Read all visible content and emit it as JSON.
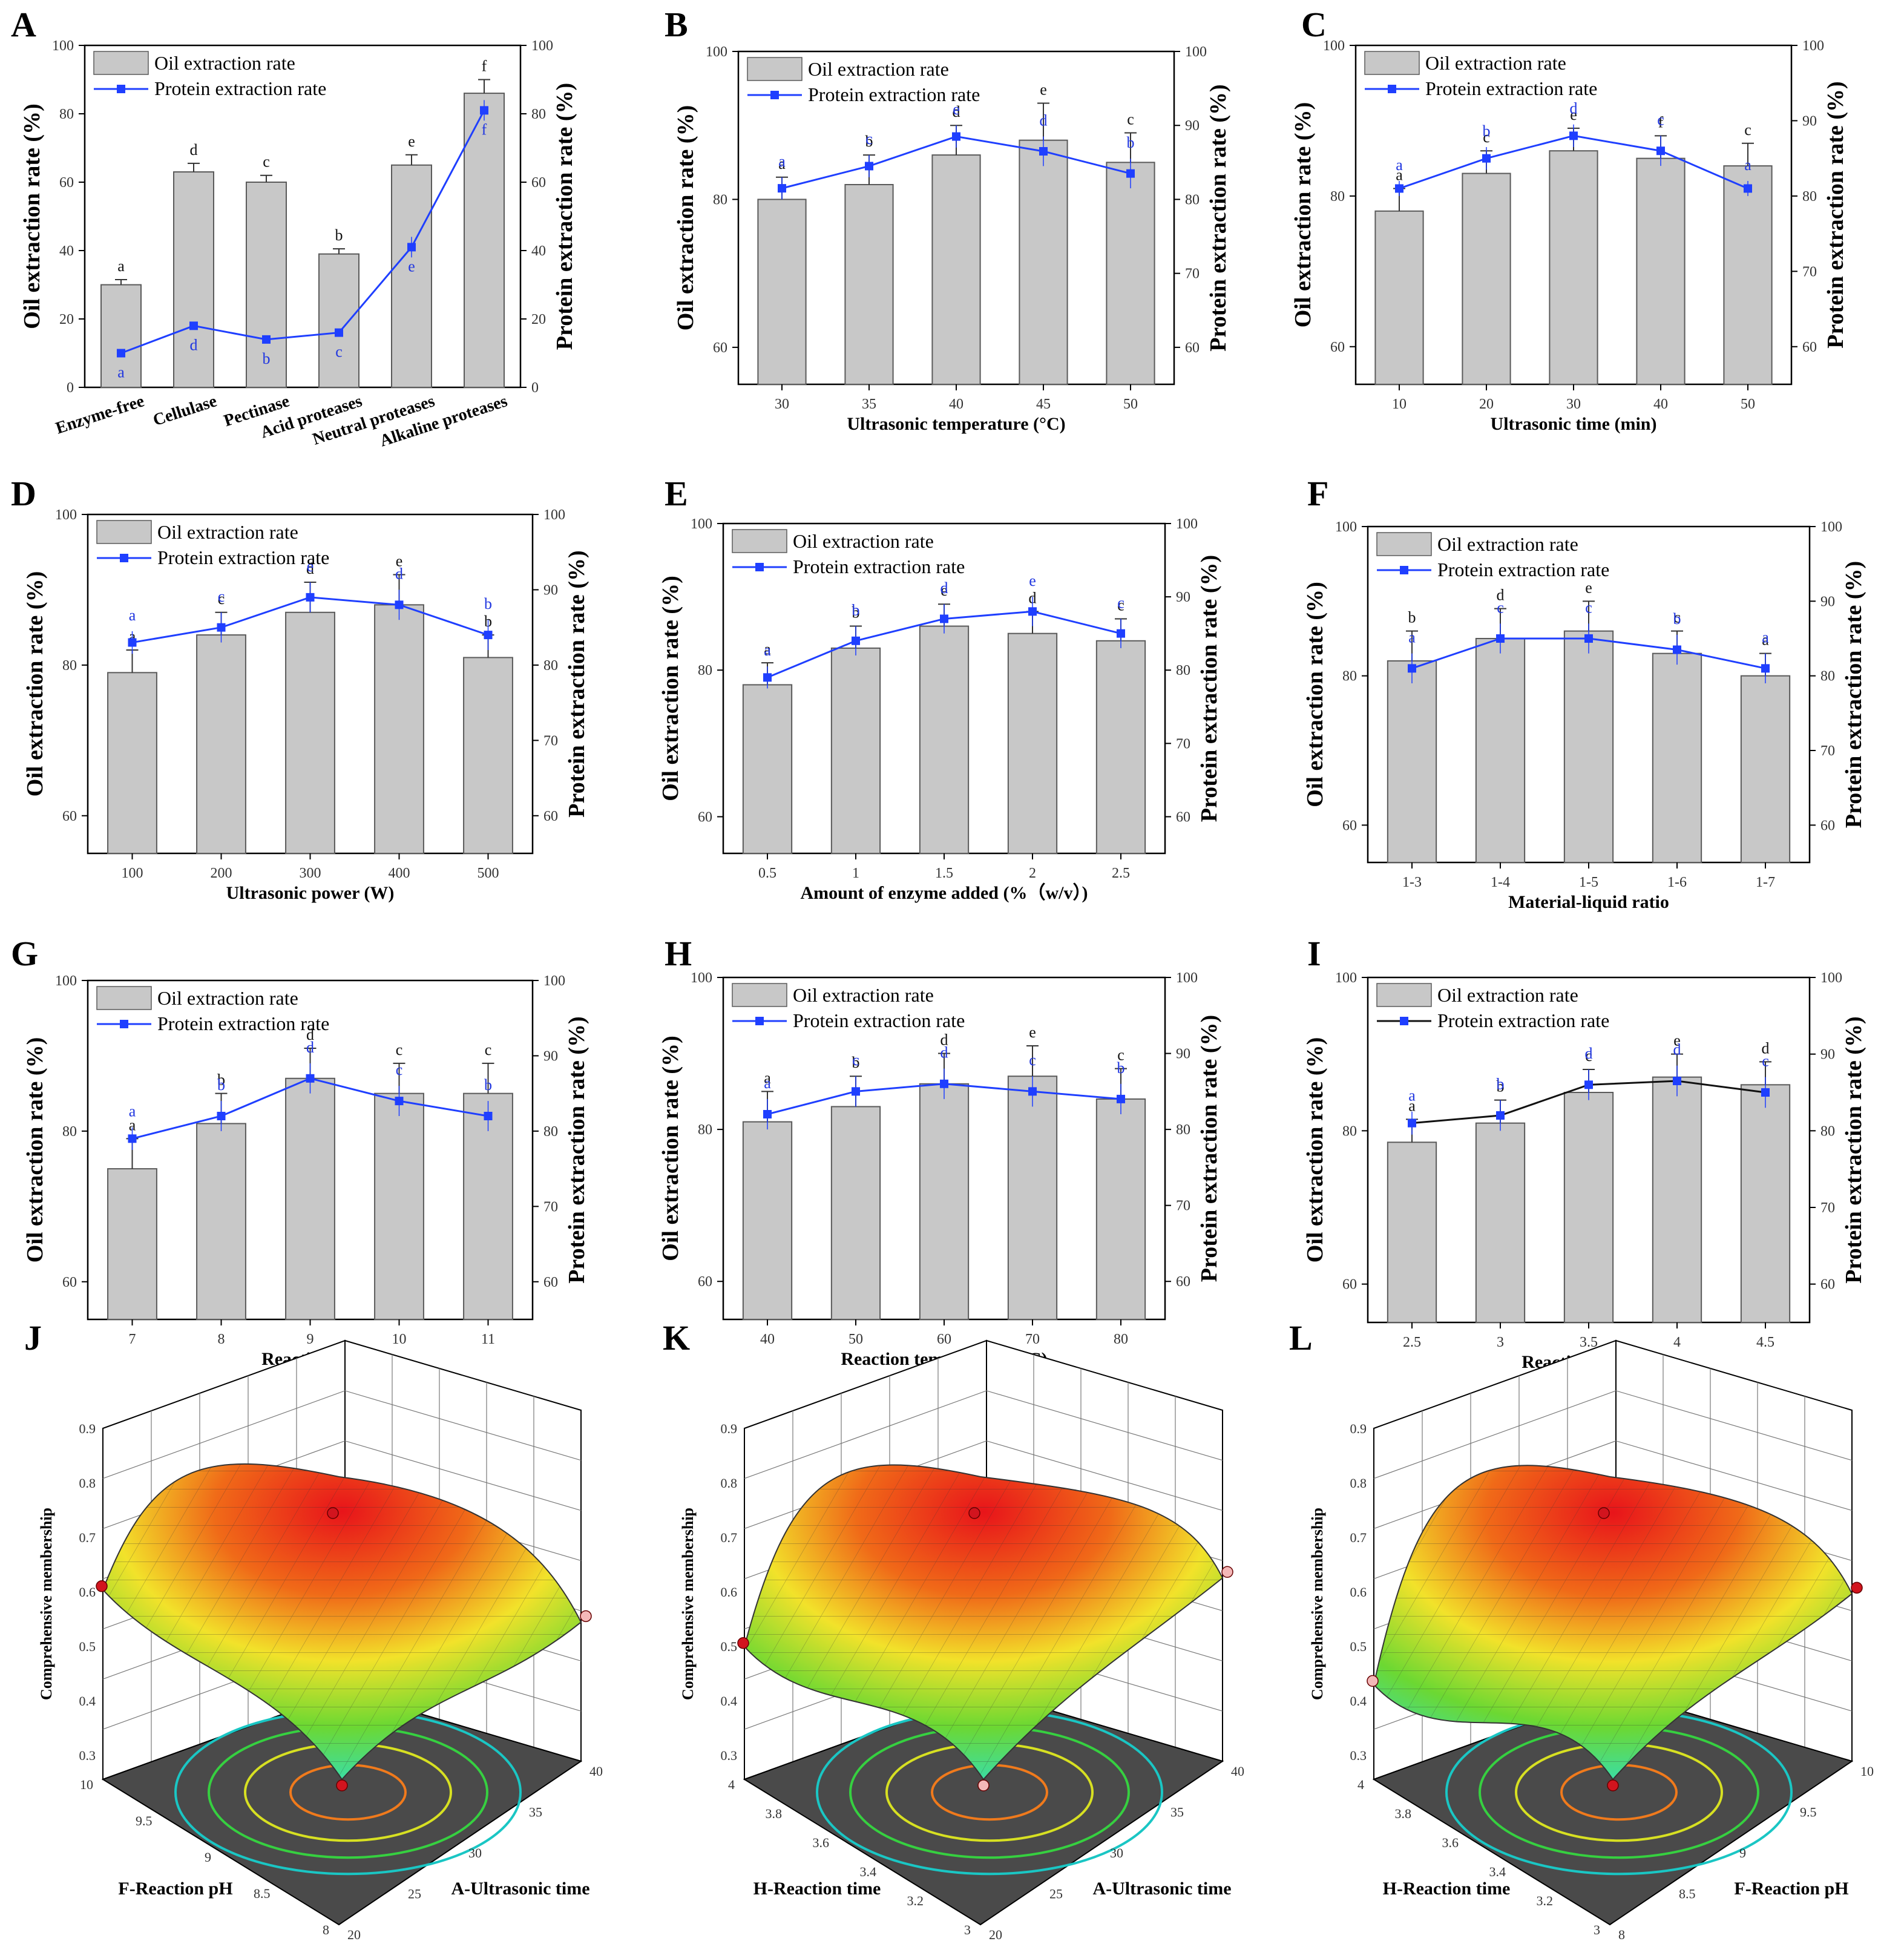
{
  "figure_title": "Oil and protein extraction single-factor experiments and response surfaces",
  "colors": {
    "bar_fill": "#c8c8c8",
    "bar_stroke": "#5a5a5a",
    "protein_line": "#1f3fff",
    "protein_marker": "#1f3fff",
    "alt_line": "#111111",
    "oil_letter": "#111111",
    "protein_letter": "#2036e0",
    "surface_floor": "#4a4a4a",
    "point_red": "#d2141e",
    "point_pink": "#f4b8b8"
  },
  "legend": {
    "oil": "Oil extraction rate",
    "protein": "Protein extraction rate"
  },
  "chart_data": [
    {
      "panel": "A",
      "type": "bar+line",
      "xlabel": "",
      "ylabel": "Oil extraction rate (%)",
      "y2label": "Protein extraction rate (%)",
      "categories": [
        "Enzyme-free",
        "Cellulase",
        "Pectinase",
        "Acid proteases",
        "Neutral proteases",
        "Alkaline proteases"
      ],
      "ylim": [
        0,
        100
      ],
      "yticks": [
        0,
        20,
        40,
        60,
        80,
        100
      ],
      "y2lim": [
        0,
        100
      ],
      "y2ticks": [
        0,
        20,
        40,
        60,
        80,
        100
      ],
      "series": [
        {
          "name": "Oil extraction rate",
          "values": [
            30,
            63,
            60,
            39,
            65,
            86
          ],
          "errors": [
            1.5,
            2.5,
            2,
            1.5,
            3,
            4
          ]
        },
        {
          "name": "Protein extraction rate",
          "values": [
            10,
            18,
            14,
            16,
            41,
            81
          ],
          "errors": [
            1,
            1,
            1,
            1,
            3,
            3
          ]
        }
      ],
      "oil_letters": [
        "a",
        "d",
        "c",
        "b",
        "e",
        "f"
      ],
      "protein_letters": [
        "a",
        "d",
        "b",
        "c",
        "e",
        "f"
      ]
    },
    {
      "panel": "B",
      "type": "bar+line",
      "xlabel": "Ultrasonic temperature (°C)",
      "ylabel": "Oil extraction rate (%)",
      "y2label": "Protein extraction rate (%)",
      "categories": [
        "30",
        "35",
        "40",
        "45",
        "50"
      ],
      "ylim": [
        55,
        100
      ],
      "yticks": [
        60,
        80,
        100
      ],
      "y2lim": [
        55,
        100
      ],
      "y2ticks": [
        60,
        70,
        80,
        90,
        100
      ],
      "series": [
        {
          "name": "Oil extraction rate",
          "values": [
            80,
            82,
            86,
            88,
            85
          ],
          "errors": [
            3,
            4,
            4,
            5,
            4
          ]
        },
        {
          "name": "Protein extraction rate",
          "values": [
            81.5,
            84.5,
            88.5,
            86.5,
            83.5
          ],
          "errors": [
            1.5,
            1.5,
            1.5,
            2,
            2
          ]
        }
      ],
      "oil_letters": [
        "a",
        "b",
        "d",
        "e",
        "c"
      ],
      "protein_letters": [
        "a",
        "c",
        "e",
        "d",
        "b"
      ]
    },
    {
      "panel": "C",
      "type": "bar+line",
      "xlabel": "Ultrasonic time (min)",
      "ylabel": "Oil extraction rate (%)",
      "y2label": "Protein extraction rate (%)",
      "categories": [
        "10",
        "20",
        "30",
        "40",
        "50"
      ],
      "ylim": [
        55,
        100
      ],
      "yticks": [
        60,
        80,
        100
      ],
      "y2lim": [
        55,
        100
      ],
      "y2ticks": [
        60,
        70,
        80,
        90,
        100
      ],
      "series": [
        {
          "name": "Oil extraction rate",
          "values": [
            78,
            83,
            86,
            85,
            84
          ],
          "errors": [
            3,
            3,
            3,
            3,
            3
          ]
        },
        {
          "name": "Protein extraction rate",
          "values": [
            81,
            85,
            88,
            86,
            81
          ],
          "errors": [
            1,
            1.5,
            1.5,
            2,
            1
          ]
        }
      ],
      "oil_letters": [
        "a",
        "c",
        "e",
        "f",
        "c"
      ],
      "protein_letters": [
        "a",
        "b",
        "d",
        "c",
        "a"
      ]
    },
    {
      "panel": "D",
      "type": "bar+line",
      "xlabel": "Ultrasonic power (W)",
      "ylabel": "Oil extraction rate (%)",
      "y2label": "Protein extraction rate (%)",
      "categories": [
        "100",
        "200",
        "300",
        "400",
        "500"
      ],
      "ylim": [
        55,
        100
      ],
      "yticks": [
        60,
        80,
        100
      ],
      "y2lim": [
        55,
        100
      ],
      "y2ticks": [
        60,
        70,
        80,
        90,
        100
      ],
      "series": [
        {
          "name": "Oil extraction rate",
          "values": [
            79,
            84,
            87,
            88,
            81
          ],
          "errors": [
            3,
            3,
            4,
            4,
            3
          ]
        },
        {
          "name": "Protein extraction rate",
          "values": [
            83,
            85,
            89,
            88,
            84
          ],
          "errors": [
            1.5,
            2,
            2,
            2,
            2
          ]
        }
      ],
      "oil_letters": [
        "a",
        "c",
        "d",
        "e",
        "b"
      ],
      "protein_letters": [
        "a",
        "c",
        "e",
        "d",
        "b"
      ]
    },
    {
      "panel": "E",
      "type": "bar+line",
      "xlabel": "Amount of enzyme added (%（w/v）)",
      "ylabel": "Oil extraction rate (%)",
      "y2label": "Protein extraction rate (%)",
      "categories": [
        "0.5",
        "1",
        "1.5",
        "2",
        "2.5"
      ],
      "ylim": [
        55,
        100
      ],
      "yticks": [
        60,
        80,
        100
      ],
      "y2lim": [
        55,
        100
      ],
      "y2ticks": [
        60,
        70,
        80,
        90,
        100
      ],
      "series": [
        {
          "name": "Oil extraction rate",
          "values": [
            78,
            83,
            86,
            85,
            84
          ],
          "errors": [
            3,
            3,
            3,
            3,
            3
          ]
        },
        {
          "name": "Protein extraction rate",
          "values": [
            79,
            84,
            87,
            88,
            85
          ],
          "errors": [
            1.5,
            2,
            2,
            2,
            2
          ]
        }
      ],
      "oil_letters": [
        "a",
        "b",
        "e",
        "d",
        "c"
      ],
      "protein_letters": [
        "a",
        "b",
        "d",
        "e",
        "c"
      ]
    },
    {
      "panel": "F",
      "type": "bar+line",
      "xlabel": "Material-liquid ratio",
      "ylabel": "Oil extraction rate (%)",
      "y2label": "Protein extraction rate (%)",
      "categories": [
        "1-3",
        "1-4",
        "1-5",
        "1-6",
        "1-7"
      ],
      "ylim": [
        55,
        100
      ],
      "yticks": [
        60,
        80,
        100
      ],
      "y2lim": [
        55,
        100
      ],
      "y2ticks": [
        60,
        70,
        80,
        90,
        100
      ],
      "series": [
        {
          "name": "Oil extraction rate",
          "values": [
            82,
            85,
            86,
            83,
            80
          ],
          "errors": [
            4,
            4,
            4,
            3,
            3
          ]
        },
        {
          "name": "Protein extraction rate",
          "values": [
            81,
            85,
            85,
            83.5,
            81
          ],
          "errors": [
            2,
            2,
            2,
            2,
            2
          ]
        }
      ],
      "oil_letters": [
        "b",
        "d",
        "e",
        "c",
        "a"
      ],
      "protein_letters": [
        "a",
        "c",
        "c",
        "b",
        "a"
      ]
    },
    {
      "panel": "G",
      "type": "bar+line",
      "xlabel": "Reaction pH",
      "ylabel": "Oil extraction rate (%)",
      "y2label": "Protein extraction rate (%)",
      "categories": [
        "7",
        "8",
        "9",
        "10",
        "11"
      ],
      "ylim": [
        55,
        100
      ],
      "yticks": [
        60,
        80,
        100
      ],
      "y2lim": [
        55,
        100
      ],
      "y2ticks": [
        60,
        70,
        80,
        90,
        100
      ],
      "series": [
        {
          "name": "Oil extraction rate",
          "values": [
            75,
            81,
            87,
            85,
            85
          ],
          "errors": [
            4,
            4,
            4,
            4,
            4
          ]
        },
        {
          "name": "Protein extraction rate",
          "values": [
            79,
            82,
            87,
            84,
            82
          ],
          "errors": [
            1.5,
            2,
            2,
            2,
            2
          ]
        }
      ],
      "oil_letters": [
        "a",
        "b",
        "d",
        "c",
        "c"
      ],
      "protein_letters": [
        "a",
        "b",
        "d",
        "c",
        "b"
      ]
    },
    {
      "panel": "H",
      "type": "bar+line",
      "xlabel": "Reaction temperature (°C)",
      "ylabel": "Oil extraction rate (%)",
      "y2label": "Protein extraction rate (%)",
      "categories": [
        "40",
        "50",
        "60",
        "70",
        "80"
      ],
      "ylim": [
        55,
        100
      ],
      "yticks": [
        60,
        80,
        100
      ],
      "y2lim": [
        55,
        100
      ],
      "y2ticks": [
        60,
        70,
        80,
        90,
        100
      ],
      "series": [
        {
          "name": "Oil extraction rate",
          "values": [
            81,
            83,
            86,
            87,
            84
          ],
          "errors": [
            4,
            4,
            4,
            4,
            4
          ]
        },
        {
          "name": "Protein extraction rate",
          "values": [
            82,
            85,
            86,
            85,
            84
          ],
          "errors": [
            2,
            2,
            2,
            2,
            2
          ]
        }
      ],
      "oil_letters": [
        "a",
        "b",
        "d",
        "e",
        "c"
      ],
      "protein_letters": [
        "a",
        "c",
        "d",
        "c",
        "b"
      ]
    },
    {
      "panel": "I",
      "type": "bar+line",
      "xlabel": "Reaction time (h)",
      "ylabel": "Oil extraction rate (%)",
      "y2label": "Protein extraction rate (%)",
      "categories": [
        "2.5",
        "3",
        "3.5",
        "4",
        "4.5"
      ],
      "ylim": [
        55,
        100
      ],
      "yticks": [
        60,
        80,
        100
      ],
      "y2lim": [
        55,
        100
      ],
      "y2ticks": [
        60,
        70,
        80,
        90,
        100
      ],
      "series": [
        {
          "name": "Oil extraction rate",
          "values": [
            78.5,
            81,
            85,
            87,
            86
          ],
          "errors": [
            3,
            3,
            3,
            3,
            3
          ]
        },
        {
          "name": "Protein extraction rate",
          "values": [
            81,
            82,
            86,
            86.5,
            85
          ],
          "errors": [
            1.5,
            2,
            2,
            2,
            2
          ]
        }
      ],
      "oil_letters": [
        "a",
        "b",
        "c",
        "e",
        "d"
      ],
      "protein_letters": [
        "a",
        "b",
        "d",
        "d",
        "c"
      ]
    },
    {
      "panel": "J",
      "type": "surface",
      "zlabel": "Comprehensive membership",
      "zticks": [
        "0.3",
        "0.4",
        "0.5",
        "0.6",
        "0.7",
        "0.8",
        "0.9"
      ],
      "left_axis": {
        "label": "F-Reaction pH",
        "ticks": [
          "10",
          "9.5",
          "9",
          "8.5",
          "8"
        ]
      },
      "right_axis": {
        "label": "A-Ultrasonic time",
        "ticks": [
          "20",
          "25",
          "30",
          "35",
          "40"
        ]
      }
    },
    {
      "panel": "K",
      "type": "surface",
      "zlabel": "Comprehensive membership",
      "zticks": [
        "0.3",
        "0.4",
        "0.5",
        "0.6",
        "0.7",
        "0.8",
        "0.9"
      ],
      "left_axis": {
        "label": "H-Reaction time",
        "ticks": [
          "4",
          "3.8",
          "3.6",
          "3.4",
          "3.2",
          "3"
        ]
      },
      "right_axis": {
        "label": "A-Ultrasonic time",
        "ticks": [
          "20",
          "25",
          "30",
          "35",
          "40"
        ]
      }
    },
    {
      "panel": "L",
      "type": "surface",
      "zlabel": "Comprehensive membership",
      "zticks": [
        "0.3",
        "0.4",
        "0.5",
        "0.6",
        "0.7",
        "0.8",
        "0.9"
      ],
      "left_axis": {
        "label": "H-Reaction time",
        "ticks": [
          "4",
          "3.8",
          "3.6",
          "3.4",
          "3.2",
          "3"
        ]
      },
      "right_axis": {
        "label": "F-Reaction pH",
        "ticks": [
          "8",
          "8.5",
          "9",
          "9.5",
          "10"
        ]
      }
    }
  ]
}
